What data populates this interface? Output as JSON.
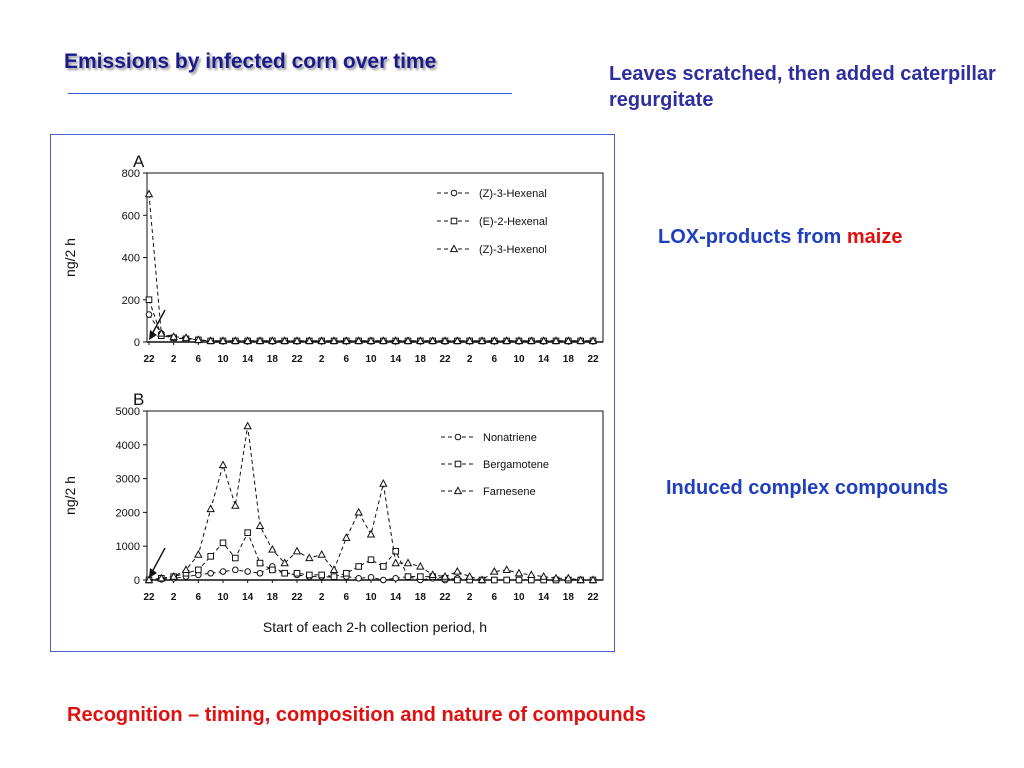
{
  "slide": {
    "title": "Emissions by infected corn over time",
    "note_leaves": "Leaves scratched, then added caterpillar regurgitate",
    "note_lox_prefix": "LOX-products from ",
    "note_lox_highlight": "maize",
    "note_induced": "Induced complex compounds",
    "footer": "Recognition – timing, composition and nature of compounds"
  },
  "colors": {
    "title": "#1a1a8c",
    "text_blue": "#1f3fbf",
    "highlight_red": "#e01010",
    "frame_border": "#4a5fd0"
  },
  "chart_data": [
    {
      "type": "line",
      "panel_label": "A",
      "ylabel": "ng/2 h",
      "xlabel": "",
      "ylim": [
        0,
        800
      ],
      "yticks": [
        0,
        200,
        400,
        600,
        800
      ],
      "x_tick_labels": [
        "22",
        "2",
        "6",
        "10",
        "14",
        "18",
        "22",
        "2",
        "6",
        "10",
        "14",
        "18",
        "22",
        "2",
        "6",
        "10",
        "14",
        "18",
        "22"
      ],
      "grid": false,
      "legend_position": "top-right",
      "annotations": [
        "arrow at start of sampling"
      ],
      "series": [
        {
          "name": "(Z)-3-Hexenal",
          "marker": "circle",
          "values": [
            130,
            40,
            20,
            15,
            10,
            5,
            5,
            5,
            5,
            5,
            5,
            5,
            5,
            5,
            5,
            5,
            5,
            5,
            5,
            5,
            5,
            5,
            5,
            5,
            5,
            5,
            5,
            5,
            5,
            5,
            5,
            5,
            5,
            5,
            5,
            5,
            5
          ]
        },
        {
          "name": "(E)-2-Hexenal",
          "marker": "square",
          "values": [
            200,
            30,
            20,
            15,
            10,
            5,
            5,
            5,
            5,
            5,
            5,
            5,
            5,
            5,
            5,
            5,
            5,
            5,
            5,
            5,
            5,
            5,
            5,
            5,
            5,
            5,
            5,
            5,
            5,
            5,
            5,
            5,
            5,
            5,
            5,
            5,
            5
          ]
        },
        {
          "name": "(Z)-3-Hexenol",
          "marker": "triangle",
          "values": [
            700,
            40,
            25,
            20,
            10,
            5,
            5,
            5,
            5,
            5,
            5,
            5,
            5,
            5,
            5,
            5,
            5,
            5,
            5,
            5,
            5,
            5,
            5,
            5,
            5,
            5,
            5,
            5,
            5,
            5,
            5,
            5,
            5,
            5,
            5,
            5,
            5
          ]
        }
      ]
    },
    {
      "type": "line",
      "panel_label": "B",
      "ylabel": "ng/2 h",
      "xlabel": "Start of each 2-h collection period, h",
      "ylim": [
        0,
        5000
      ],
      "yticks": [
        0,
        1000,
        2000,
        3000,
        4000,
        5000
      ],
      "x_tick_labels": [
        "22",
        "2",
        "6",
        "10",
        "14",
        "18",
        "22",
        "2",
        "6",
        "10",
        "14",
        "18",
        "22",
        "2",
        "6",
        "10",
        "14",
        "18",
        "22"
      ],
      "grid": false,
      "legend_position": "top-right",
      "annotations": [
        "arrow at start of sampling"
      ],
      "series": [
        {
          "name": "Nonatriene",
          "marker": "circle",
          "values": [
            0,
            20,
            50,
            100,
            150,
            200,
            250,
            300,
            250,
            200,
            400,
            200,
            150,
            100,
            100,
            80,
            100,
            50,
            80,
            0,
            50,
            100,
            0,
            50,
            0,
            50,
            0,
            0,
            0,
            0,
            0,
            0,
            0,
            0,
            0,
            0,
            0
          ]
        },
        {
          "name": "Bergamotene",
          "marker": "square",
          "values": [
            0,
            50,
            100,
            200,
            300,
            700,
            1100,
            650,
            1400,
            500,
            300,
            200,
            200,
            150,
            150,
            100,
            200,
            400,
            600,
            400,
            850,
            100,
            100,
            100,
            50,
            0,
            0,
            0,
            0,
            0,
            0,
            0,
            0,
            0,
            0,
            0,
            0
          ]
        },
        {
          "name": "Farnesene",
          "marker": "triangle",
          "values": [
            0,
            50,
            100,
            300,
            750,
            2100,
            3400,
            2200,
            4550,
            1600,
            900,
            500,
            850,
            650,
            750,
            300,
            1250,
            2000,
            1350,
            2850,
            500,
            500,
            400,
            150,
            100,
            250,
            100,
            0,
            250,
            300,
            200,
            150,
            100,
            50,
            50,
            0,
            0
          ]
        }
      ]
    }
  ]
}
